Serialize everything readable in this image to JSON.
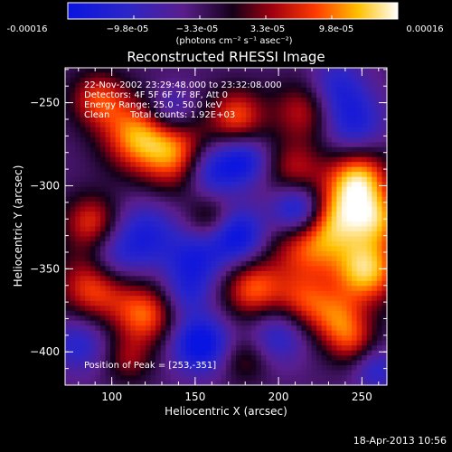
{
  "colorbar": {
    "ticks": [
      "-0.00016",
      "−9.8e-05",
      "−3.3e-05",
      "3.3e-05",
      "9.8e-05",
      "0.00016"
    ],
    "unit_label": "(photons cm⁻² s⁻¹ asec⁻²)",
    "range": [
      -0.00016,
      0.00016
    ]
  },
  "chart_data": {
    "type": "heatmap",
    "title": "Reconstructed RHESSI Image",
    "xlabel": "Heliocentric X (arcsec)",
    "ylabel": "Heliocentric Y (arcsec)",
    "xlim": [
      72,
      265
    ],
    "ylim": [
      -420,
      -229
    ],
    "xticks": [
      100,
      150,
      200,
      250
    ],
    "yticks": [
      -250,
      -300,
      -350,
      -400
    ],
    "annotations": {
      "time_range": "22-Nov-2002 23:29:48.000 to 23:32:08.000",
      "detectors": "Detectors: 4F 5F 6F 7F 8F, Att 0",
      "energy": "Energy Range: 25.0 - 50.0 keV",
      "method": "Clean",
      "total_counts": "Total counts: 1.92E+03",
      "peak_position": "Position of Peak = [253,-351]"
    },
    "peak": [
      253,
      -351
    ],
    "blobs": [
      {
        "x": 253,
        "y": -351,
        "v": 1.0,
        "s": 14
      },
      {
        "x": 248,
        "y": -296,
        "v": 0.95,
        "s": 13
      },
      {
        "x": 218,
        "y": -335,
        "v": 0.75,
        "s": 16
      },
      {
        "x": 236,
        "y": -318,
        "v": 0.7,
        "s": 14
      },
      {
        "x": 260,
        "y": -320,
        "v": 0.7,
        "s": 12
      },
      {
        "x": 115,
        "y": -270,
        "v": 0.85,
        "s": 15
      },
      {
        "x": 140,
        "y": -282,
        "v": 0.8,
        "s": 15
      },
      {
        "x": 92,
        "y": -248,
        "v": 0.65,
        "s": 12
      },
      {
        "x": 175,
        "y": -258,
        "v": 0.7,
        "s": 12
      },
      {
        "x": 215,
        "y": -255,
        "v": 0.55,
        "s": 13
      },
      {
        "x": 210,
        "y": -290,
        "v": 0.5,
        "s": 12
      },
      {
        "x": 88,
        "y": -322,
        "v": 0.65,
        "s": 12
      },
      {
        "x": 90,
        "y": -360,
        "v": 0.8,
        "s": 15
      },
      {
        "x": 120,
        "y": -378,
        "v": 0.75,
        "s": 13
      },
      {
        "x": 185,
        "y": -362,
        "v": 0.75,
        "s": 13
      },
      {
        "x": 215,
        "y": -370,
        "v": 0.55,
        "s": 12
      },
      {
        "x": 235,
        "y": -380,
        "v": 0.6,
        "s": 12
      },
      {
        "x": 245,
        "y": -395,
        "v": 0.5,
        "s": 11
      },
      {
        "x": 160,
        "y": -320,
        "v": 0.45,
        "s": 10
      },
      {
        "x": 110,
        "y": -405,
        "v": 0.4,
        "s": 10
      },
      {
        "x": 180,
        "y": -405,
        "v": 0.35,
        "s": 10
      },
      {
        "x": 153,
        "y": -395,
        "v": -0.9,
        "s": 12
      },
      {
        "x": 175,
        "y": -330,
        "v": -0.85,
        "s": 12
      },
      {
        "x": 212,
        "y": -315,
        "v": -0.95,
        "s": 11
      },
      {
        "x": 160,
        "y": -290,
        "v": -0.75,
        "s": 12
      },
      {
        "x": 180,
        "y": -285,
        "v": -0.6,
        "s": 10
      },
      {
        "x": 120,
        "y": -330,
        "v": -0.6,
        "s": 14
      },
      {
        "x": 100,
        "y": -345,
        "v": -0.5,
        "s": 12
      },
      {
        "x": 150,
        "y": -345,
        "v": -0.6,
        "s": 12
      },
      {
        "x": 135,
        "y": -255,
        "v": -0.5,
        "s": 10
      },
      {
        "x": 245,
        "y": -262,
        "v": -0.6,
        "s": 13
      },
      {
        "x": 235,
        "y": -240,
        "v": -0.5,
        "s": 12
      },
      {
        "x": 200,
        "y": -390,
        "v": -0.5,
        "s": 12
      },
      {
        "x": 80,
        "y": -395,
        "v": -0.5,
        "s": 12
      },
      {
        "x": 145,
        "y": -365,
        "v": -0.4,
        "s": 10
      },
      {
        "x": 258,
        "y": -410,
        "v": -0.5,
        "s": 10
      }
    ]
  },
  "footer": {
    "date": "18-Apr-2013 10:56"
  }
}
